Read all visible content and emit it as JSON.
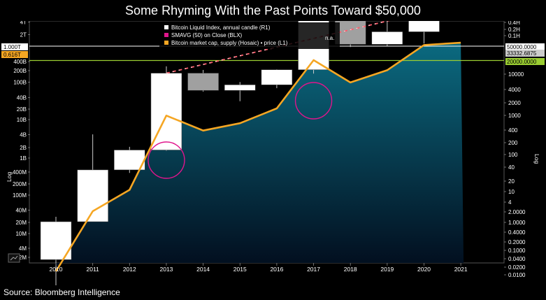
{
  "chart_data": {
    "type": "candlestick+line",
    "title": "Some Rhyming With the Past Points Toward $50,000",
    "source": "Source: Bloomberg Intelligence",
    "ylabel_left": "Log",
    "ylabel_right": "Log",
    "x_labels": [
      "2010",
      "2011",
      "2012",
      "2013",
      "2014",
      "2015",
      "2016",
      "2017",
      "2018",
      "2019",
      "2020",
      "2021"
    ],
    "left_ticks": [
      "4T",
      "2T",
      "1.000T",
      "0.616T",
      "400B",
      "200B",
      "100B",
      "40B",
      "20B",
      "10B",
      "4B",
      "2B",
      "1B",
      "400M",
      "200M",
      "100M",
      "40M",
      "20M",
      "10M",
      "4M",
      "2M"
    ],
    "right_ticks": [
      "0.4H",
      "0.2H",
      "0.1H",
      "50000.0000",
      "33332.6875",
      "20000.0000",
      "10000",
      "4000",
      "2000",
      "1000",
      "400",
      "200",
      "100",
      "40",
      "20",
      "10",
      "4",
      "2.0000",
      "1.0000",
      "0.4000",
      "0.2000",
      "0.1000",
      "0.0400",
      "0.0200",
      "0.0100"
    ],
    "legend": [
      {
        "name": "Bitcoin Liquid Index, annual candle (R1)",
        "color": "#ffffff"
      },
      {
        "name": "SMAVG (50)  on Close (BLX)",
        "color": "#e0158c",
        "value": "n.a."
      },
      {
        "name": "Bitcoin market cap, supply (Hosaic) • price (L1)",
        "color": "#f5a623"
      }
    ],
    "highlight_levels": {
      "left": "0.616T",
      "right": "20000.0000"
    },
    "candles": [
      {
        "year": "2010",
        "open": 0.04,
        "close": 0.3,
        "high": 0.39,
        "low": 0.008,
        "color": "white"
      },
      {
        "year": "2011",
        "open": 0.3,
        "close": 4.7,
        "high": 31,
        "low": 0.3,
        "color": "white"
      },
      {
        "year": "2012",
        "open": 4.7,
        "close": 13.5,
        "high": 16,
        "low": 4,
        "color": "white"
      },
      {
        "year": "2013",
        "open": 13.5,
        "close": 800,
        "high": 1150,
        "low": 13,
        "color": "white"
      },
      {
        "year": "2014",
        "open": 800,
        "close": 320,
        "high": 950,
        "low": 300,
        "color": "gray"
      },
      {
        "year": "2015",
        "open": 320,
        "close": 430,
        "high": 500,
        "low": 180,
        "color": "white"
      },
      {
        "year": "2016",
        "open": 430,
        "close": 960,
        "high": 980,
        "low": 360,
        "color": "white"
      },
      {
        "year": "2017",
        "open": 960,
        "close": 14000,
        "high": 19500,
        "low": 780,
        "color": "white"
      },
      {
        "year": "2018",
        "open": 14000,
        "close": 3700,
        "high": 17000,
        "low": 3200,
        "color": "gray"
      },
      {
        "year": "2019",
        "open": 3700,
        "close": 7200,
        "high": 13800,
        "low": 3400,
        "color": "white"
      },
      {
        "year": "2020",
        "open": 7200,
        "close": 29000,
        "high": 29300,
        "low": 3850,
        "color": "white"
      },
      {
        "year": "2021",
        "open": 29000,
        "close": 33000,
        "high": 35000,
        "low": 29000,
        "color": "white"
      }
    ],
    "market_cap_line": {
      "name": "Bitcoin market cap",
      "x": [
        "2010",
        "2011",
        "2012",
        "2013",
        "2014",
        "2015",
        "2016",
        "2017",
        "2018",
        "2019",
        "2020",
        "2021"
      ],
      "y": [
        1500000.0,
        45000000.0,
        150000000.0,
        10000000000.0,
        4300000000.0,
        6500000000.0,
        15000000000.0,
        230000000000.0,
        65000000000.0,
        130000000000.0,
        540000000000.0,
        616000000000.0
      ]
    },
    "trend_line": {
      "style": "dashed",
      "x": [
        "2013",
        "2021"
      ],
      "y_right": [
        800,
        55000
      ]
    },
    "circles": [
      "2013",
      "2017"
    ]
  }
}
